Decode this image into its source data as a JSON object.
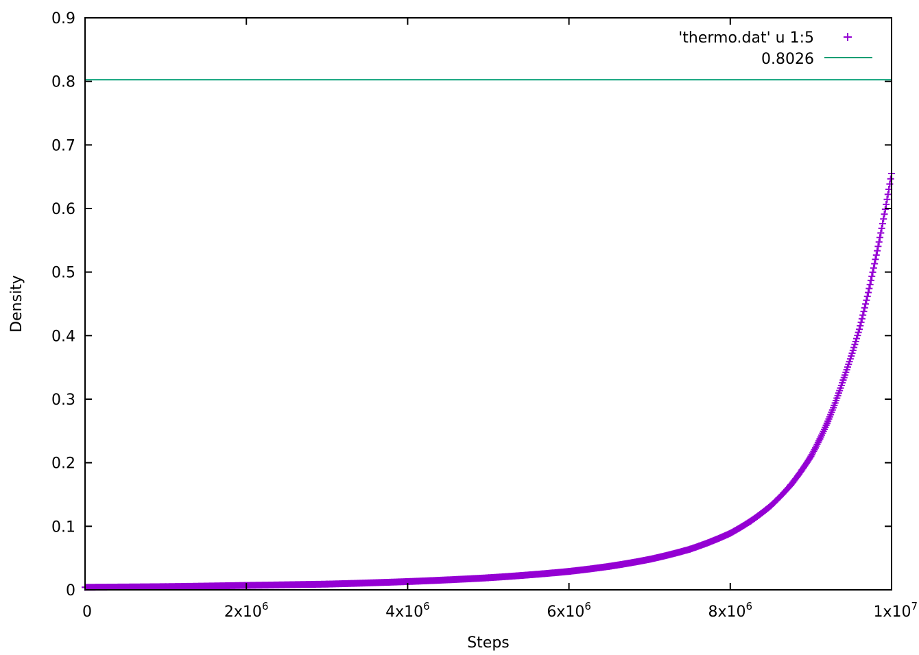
{
  "chart_data": {
    "type": "scatter",
    "xlabel": "Steps",
    "ylabel": "Density",
    "xlim": [
      0,
      10000000
    ],
    "ylim": [
      0,
      0.9
    ],
    "grid": false,
    "legend_position": "top-right",
    "x_ticks": [
      {
        "value": 0,
        "mantissa": "0",
        "exponent": ""
      },
      {
        "value": 2000000,
        "mantissa": "2x10",
        "exponent": "6"
      },
      {
        "value": 4000000,
        "mantissa": "4x10",
        "exponent": "6"
      },
      {
        "value": 6000000,
        "mantissa": "6x10",
        "exponent": "6"
      },
      {
        "value": 8000000,
        "mantissa": "8x10",
        "exponent": "6"
      },
      {
        "value": 10000000,
        "mantissa": "1x10",
        "exponent": "7"
      }
    ],
    "y_ticks": [
      {
        "value": 0,
        "label": "0"
      },
      {
        "value": 0.1,
        "label": "0.1"
      },
      {
        "value": 0.2,
        "label": "0.2"
      },
      {
        "value": 0.3,
        "label": "0.3"
      },
      {
        "value": 0.4,
        "label": "0.4"
      },
      {
        "value": 0.5,
        "label": "0.5"
      },
      {
        "value": 0.6,
        "label": "0.6"
      },
      {
        "value": 0.7,
        "label": "0.7"
      },
      {
        "value": 0.8,
        "label": "0.8"
      },
      {
        "value": 0.9,
        "label": "0.9"
      }
    ],
    "series": [
      {
        "name": "'thermo.dat' u 1:5",
        "kind": "points",
        "marker": "+",
        "color": "#9400D3",
        "x": [
          0,
          1000000,
          2000000,
          3000000,
          4000000,
          5000000,
          6000000,
          6500000,
          7000000,
          7500000,
          8000000,
          8250000,
          8500000,
          8750000,
          9000000,
          9200000,
          9400000,
          9600000,
          9800000,
          10000000
        ],
        "y": [
          0.004,
          0.005,
          0.007,
          0.009,
          0.013,
          0.019,
          0.029,
          0.037,
          0.048,
          0.064,
          0.089,
          0.108,
          0.132,
          0.165,
          0.21,
          0.262,
          0.33,
          0.41,
          0.52,
          0.655
        ]
      },
      {
        "name": "0.8026",
        "kind": "constant-line",
        "color": "#009E73",
        "y": 0.8026
      }
    ]
  }
}
